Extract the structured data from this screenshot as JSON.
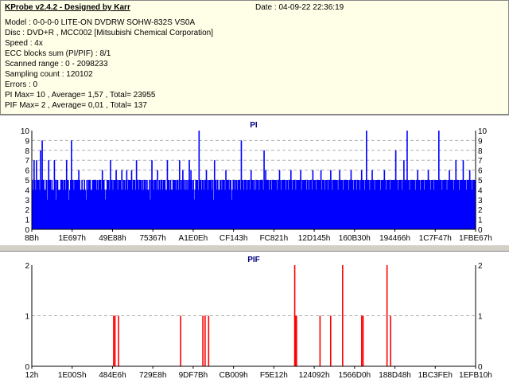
{
  "info": {
    "title": "KProbe v2.4.2 - Designed by Karr",
    "date": "Date : 04-09-22 22:36:19",
    "lines": [
      "Model : 0-0-0-0 LITE-ON DVDRW SOHW-832S  VS0A",
      "Disc : DVD+R , MCC002 [Mitsubishi Chemical Corporation]",
      "Speed : 4x",
      "ECC blocks sum (PI/PIF) : 8/1",
      "Scanned range : 0 - 2098233",
      "Sampling count : 120102",
      "Errors : 0",
      "PI Max= 10 , Average= 1,57 , Total= 23955",
      "PIF Max= 2 , Average= 0,01 , Total= 137"
    ]
  },
  "colors": {
    "pi": "#0000ff",
    "pif": "#ff0000",
    "grid": "#b0b0b0",
    "panel": "#ffffe8"
  },
  "chart_data": [
    {
      "type": "bar",
      "title": "PI",
      "xlabel": "",
      "ylabel": "",
      "ylim": [
        0,
        10
      ],
      "yticks": [
        "0",
        "1",
        "2",
        "3",
        "4",
        "5",
        "6",
        "7",
        "8",
        "9",
        "10"
      ],
      "xticks": [
        "8Bh",
        "1E697h",
        "49E88h",
        "75367h",
        "A1E0Eh",
        "CF143h",
        "FC821h",
        "12D145h",
        "160B30h",
        "194466h",
        "1C7F47h",
        "1FBE67h"
      ],
      "grid": true,
      "values": [
        5,
        4,
        7,
        5,
        4,
        7,
        5,
        5,
        5,
        4,
        8,
        5,
        9,
        5,
        5,
        4,
        4,
        5,
        3,
        5,
        7,
        5,
        5,
        4,
        5,
        4,
        4,
        7,
        5,
        3,
        5,
        5,
        4,
        4,
        4,
        5,
        5,
        5,
        4,
        5,
        5,
        4,
        7,
        5,
        5,
        3,
        4,
        5,
        9,
        5,
        5,
        4,
        5,
        5,
        5,
        5,
        5,
        6,
        5,
        4,
        4,
        5,
        4,
        4,
        5,
        4,
        3,
        5,
        4,
        5,
        5,
        5,
        4,
        4,
        5,
        5,
        5,
        5,
        5,
        4,
        5,
        4,
        5,
        5,
        5,
        4,
        6,
        5,
        5,
        4,
        3,
        4,
        5,
        5,
        5,
        4,
        7,
        5,
        5,
        4,
        5,
        5,
        5,
        6,
        5,
        4,
        5,
        5,
        5,
        4,
        6,
        4,
        5,
        5,
        4,
        5,
        6,
        4,
        5,
        5,
        5,
        5,
        6,
        4,
        5,
        5,
        5,
        4,
        7,
        5,
        5,
        4,
        5,
        5,
        5,
        4,
        5,
        4,
        5,
        5,
        4,
        5,
        4,
        4,
        5,
        3,
        5,
        7,
        5,
        4,
        5,
        5,
        5,
        4,
        6,
        4,
        5,
        4,
        5,
        5,
        4,
        5,
        5,
        5,
        4,
        4,
        7,
        5,
        5,
        4,
        5,
        4,
        4,
        5,
        5,
        5,
        5,
        4,
        5,
        5,
        4,
        7,
        5,
        4,
        5,
        6,
        5,
        4,
        5,
        4,
        5,
        4,
        5,
        7,
        5,
        6,
        5,
        4,
        5,
        3,
        4,
        5,
        5,
        5,
        4,
        10,
        5,
        5,
        4,
        5,
        5,
        4,
        5,
        5,
        6,
        5,
        4,
        5,
        5,
        5,
        5,
        4,
        5,
        3,
        7,
        5,
        5,
        4,
        5,
        4,
        4,
        5,
        5,
        4,
        5,
        5,
        5,
        4,
        6,
        5,
        5,
        5,
        4,
        5,
        5,
        3,
        4,
        5,
        5,
        4,
        5,
        5,
        4,
        5,
        5,
        5,
        4,
        9,
        5,
        5,
        4,
        5,
        5,
        5,
        4,
        5,
        5,
        5,
        4,
        6,
        5,
        5,
        5,
        4,
        5,
        4,
        5,
        5,
        5,
        4,
        5,
        5,
        5,
        5,
        4,
        8,
        5,
        6,
        5,
        5,
        5,
        4,
        5,
        5,
        4,
        5,
        5,
        5,
        5,
        5,
        5,
        4,
        5,
        5,
        6,
        5,
        4,
        5,
        5,
        5,
        5,
        5,
        4,
        5,
        5,
        4,
        5,
        5,
        6,
        5,
        4,
        5,
        5,
        5,
        4,
        5,
        5,
        5,
        5,
        5,
        6,
        4,
        5,
        5,
        5,
        5,
        5,
        4,
        5,
        5,
        4,
        5,
        5,
        5,
        4,
        6,
        5,
        5,
        5,
        4,
        5,
        5,
        5,
        5,
        5,
        6,
        4,
        5,
        5,
        5,
        4,
        5,
        5,
        5,
        4,
        5,
        5,
        6,
        5,
        4,
        5,
        5,
        5,
        5,
        5,
        5,
        4,
        5,
        6,
        5,
        5,
        5,
        4,
        5,
        5,
        5,
        5,
        5,
        5,
        4,
        5,
        5,
        6,
        5,
        5,
        4,
        5,
        5,
        5,
        4,
        5,
        5,
        5,
        4,
        5,
        6,
        5,
        5,
        5,
        4,
        5,
        10,
        5,
        5,
        5,
        4,
        5,
        5,
        6,
        5,
        5,
        4,
        5,
        5,
        5,
        5,
        5,
        5,
        4,
        5,
        5,
        5,
        5,
        6,
        5,
        4,
        5,
        5,
        5,
        5,
        4,
        5,
        5,
        5,
        5,
        5,
        5,
        8,
        5,
        5,
        4,
        5,
        5,
        5,
        5,
        4,
        5,
        7,
        5,
        5,
        5,
        10,
        5,
        5,
        4,
        5,
        5,
        5,
        5,
        5,
        5,
        4,
        5,
        5,
        6,
        5,
        5,
        4,
        5,
        5,
        5,
        5,
        4,
        5,
        5,
        5,
        5,
        6,
        5,
        5,
        4,
        5,
        5,
        5,
        4,
        5,
        5,
        5,
        5,
        5,
        10,
        5,
        5,
        5,
        4,
        5,
        5,
        5,
        5,
        5,
        4,
        5,
        5,
        6,
        5,
        5,
        5,
        5,
        4,
        5,
        5,
        7,
        5,
        5,
        5,
        4,
        5,
        5,
        5,
        5,
        7,
        5,
        5,
        5,
        4,
        5,
        5,
        5,
        6,
        5,
        5,
        4,
        5,
        5,
        5,
        5
      ]
    },
    {
      "type": "bar",
      "title": "PIF",
      "xlabel": "",
      "ylabel": "",
      "ylim": [
        0,
        2
      ],
      "yticks": [
        "0",
        "1",
        "2"
      ],
      "xticks": [
        "12h",
        "1E00Sh",
        "484E6h",
        "729E8h",
        "9DF7Bh",
        "CB009h",
        "F5E12h",
        "124092h",
        "1566D0h",
        "188D48h",
        "1BC3FEh",
        "1EFB10h"
      ],
      "grid": true,
      "events": [
        {
          "x": 0.183,
          "v": 1
        },
        {
          "x": 0.186,
          "v": 1
        },
        {
          "x": 0.194,
          "v": 1
        },
        {
          "x": 0.334,
          "v": 1
        },
        {
          "x": 0.384,
          "v": 1
        },
        {
          "x": 0.389,
          "v": 1
        },
        {
          "x": 0.397,
          "v": 1
        },
        {
          "x": 0.591,
          "v": 2
        },
        {
          "x": 0.593,
          "v": 1
        },
        {
          "x": 0.595,
          "v": 1
        },
        {
          "x": 0.648,
          "v": 1
        },
        {
          "x": 0.672,
          "v": 1
        },
        {
          "x": 0.699,
          "v": 2
        },
        {
          "x": 0.742,
          "v": 1
        },
        {
          "x": 0.745,
          "v": 1
        },
        {
          "x": 0.799,
          "v": 2
        },
        {
          "x": 0.807,
          "v": 1
        }
      ]
    }
  ]
}
